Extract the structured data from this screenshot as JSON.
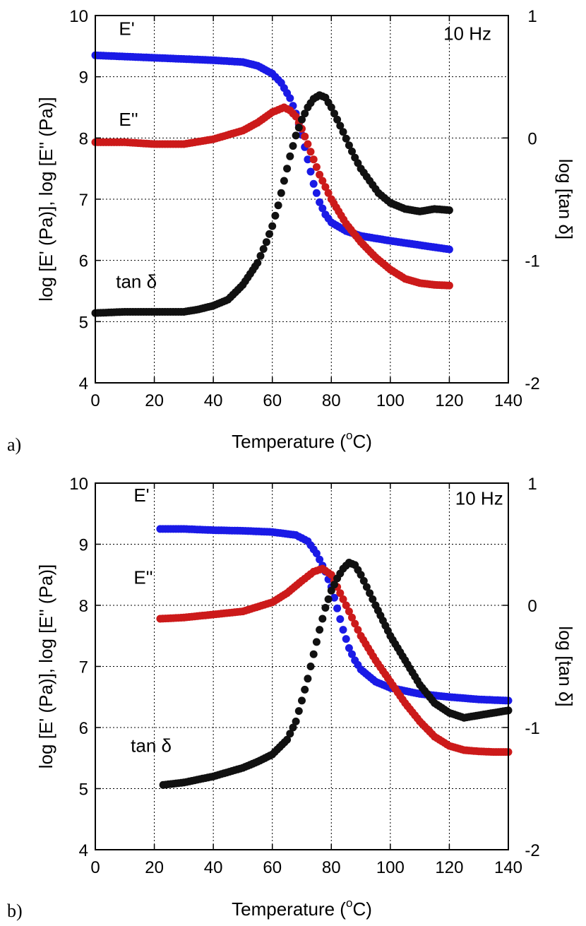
{
  "chart_data": [
    {
      "type": "scatter",
      "panel_label": "a)",
      "xlabel": "Temperature (",
      "xlabel_unit_sup": "o",
      "xlabel_suffix": "C)",
      "ylabel": "log [E' (Pa)], log [E'' (Pa)]",
      "y2label": "log [tan δ]",
      "xlim": [
        0,
        140
      ],
      "ylim": [
        4,
        10
      ],
      "y2lim": [
        -2,
        1
      ],
      "x_ticks": [
        "0",
        "20",
        "40",
        "60",
        "80",
        "100",
        "120",
        "140"
      ],
      "y_ticks": [
        "4",
        "5",
        "6",
        "7",
        "8",
        "9",
        "10"
      ],
      "y2_ticks": [
        "-2",
        "-1",
        "0",
        "1"
      ],
      "grid": true,
      "annotations": [
        {
          "text": "E'",
          "x": 8,
          "y": 9.68
        },
        {
          "text": "E''",
          "x": 8,
          "y": 8.2
        },
        {
          "text": "tan δ",
          "x": 7,
          "y": 5.55
        },
        {
          "text": "10 Hz",
          "x": 118,
          "y": 9.6
        }
      ],
      "series": [
        {
          "axis": "left",
          "color": "#1a1ae6",
          "points": [
            [
              0,
              9.35
            ],
            [
              10,
              9.33
            ],
            [
              20,
              9.31
            ],
            [
              30,
              9.29
            ],
            [
              40,
              9.27
            ],
            [
              50,
              9.24
            ],
            [
              55,
              9.18
            ],
            [
              60,
              9.05
            ],
            [
              63,
              8.9
            ],
            [
              66,
              8.65
            ],
            [
              68,
              8.4
            ],
            [
              70,
              8.05
            ],
            [
              72,
              7.65
            ],
            [
              74,
              7.25
            ],
            [
              76,
              6.95
            ],
            [
              78,
              6.75
            ],
            [
              80,
              6.62
            ],
            [
              85,
              6.48
            ],
            [
              90,
              6.4
            ],
            [
              100,
              6.32
            ],
            [
              110,
              6.25
            ],
            [
              120,
              6.18
            ]
          ]
        },
        {
          "axis": "left",
          "color": "#cc1a1a",
          "points": [
            [
              0,
              7.93
            ],
            [
              10,
              7.93
            ],
            [
              20,
              7.9
            ],
            [
              30,
              7.9
            ],
            [
              40,
              7.98
            ],
            [
              50,
              8.12
            ],
            [
              55,
              8.25
            ],
            [
              60,
              8.42
            ],
            [
              64,
              8.5
            ],
            [
              66,
              8.45
            ],
            [
              68,
              8.35
            ],
            [
              70,
              8.15
            ],
            [
              72,
              7.9
            ],
            [
              74,
              7.65
            ],
            [
              76,
              7.4
            ],
            [
              78,
              7.2
            ],
            [
              80,
              7.0
            ],
            [
              85,
              6.6
            ],
            [
              90,
              6.3
            ],
            [
              95,
              6.05
            ],
            [
              100,
              5.85
            ],
            [
              105,
              5.7
            ],
            [
              110,
              5.63
            ],
            [
              115,
              5.6
            ],
            [
              120,
              5.59
            ]
          ]
        },
        {
          "axis": "right",
          "color": "#111111",
          "points": [
            [
              0,
              -1.43
            ],
            [
              10,
              -1.42
            ],
            [
              20,
              -1.42
            ],
            [
              30,
              -1.42
            ],
            [
              35,
              -1.4
            ],
            [
              40,
              -1.37
            ],
            [
              45,
              -1.32
            ],
            [
              50,
              -1.2
            ],
            [
              55,
              -1.02
            ],
            [
              58,
              -0.85
            ],
            [
              60,
              -0.72
            ],
            [
              62,
              -0.55
            ],
            [
              64,
              -0.35
            ],
            [
              66,
              -0.15
            ],
            [
              68,
              0.02
            ],
            [
              70,
              0.15
            ],
            [
              72,
              0.25
            ],
            [
              74,
              0.32
            ],
            [
              76,
              0.35
            ],
            [
              78,
              0.33
            ],
            [
              80,
              0.25
            ],
            [
              82,
              0.15
            ],
            [
              84,
              0.05
            ],
            [
              86,
              -0.06
            ],
            [
              88,
              -0.16
            ],
            [
              90,
              -0.25
            ],
            [
              93,
              -0.35
            ],
            [
              96,
              -0.45
            ],
            [
              100,
              -0.53
            ],
            [
              105,
              -0.58
            ],
            [
              110,
              -0.6
            ],
            [
              115,
              -0.58
            ],
            [
              120,
              -0.59
            ]
          ]
        }
      ]
    },
    {
      "type": "scatter",
      "panel_label": "b)",
      "xlabel": "Temperature (",
      "xlabel_unit_sup": "o",
      "xlabel_suffix": "C)",
      "ylabel": "log [E' (Pa)], log [E'' (Pa)]",
      "y2label": "log [tan δ]",
      "xlim": [
        0,
        140
      ],
      "ylim": [
        4,
        10
      ],
      "y2lim": [
        -2,
        1
      ],
      "x_ticks": [
        "0",
        "20",
        "40",
        "60",
        "80",
        "100",
        "120",
        "140"
      ],
      "y_ticks": [
        "4",
        "5",
        "6",
        "7",
        "8",
        "9",
        "10"
      ],
      "y2_ticks": [
        "-2",
        "-1",
        "0",
        "1"
      ],
      "grid": true,
      "annotations": [
        {
          "text": "E'",
          "x": 13,
          "y": 9.7
        },
        {
          "text": "E''",
          "x": 13,
          "y": 8.35
        },
        {
          "text": "tan δ",
          "x": 12,
          "y": 5.6
        },
        {
          "text": "10 Hz",
          "x": 122,
          "y": 9.65
        }
      ],
      "series": [
        {
          "axis": "left",
          "color": "#1a1ae6",
          "points": [
            [
              22,
              9.25
            ],
            [
              30,
              9.25
            ],
            [
              40,
              9.23
            ],
            [
              50,
              9.22
            ],
            [
              60,
              9.2
            ],
            [
              68,
              9.15
            ],
            [
              72,
              9.05
            ],
            [
              75,
              8.85
            ],
            [
              78,
              8.55
            ],
            [
              80,
              8.3
            ],
            [
              82,
              7.95
            ],
            [
              84,
              7.6
            ],
            [
              86,
              7.3
            ],
            [
              88,
              7.1
            ],
            [
              90,
              6.95
            ],
            [
              95,
              6.75
            ],
            [
              100,
              6.65
            ],
            [
              110,
              6.55
            ],
            [
              120,
              6.5
            ],
            [
              130,
              6.46
            ],
            [
              140,
              6.44
            ]
          ]
        },
        {
          "axis": "left",
          "color": "#cc1a1a",
          "points": [
            [
              22,
              7.78
            ],
            [
              30,
              7.8
            ],
            [
              40,
              7.85
            ],
            [
              50,
              7.9
            ],
            [
              60,
              8.05
            ],
            [
              65,
              8.2
            ],
            [
              70,
              8.4
            ],
            [
              74,
              8.55
            ],
            [
              77,
              8.6
            ],
            [
              80,
              8.5
            ],
            [
              82,
              8.3
            ],
            [
              85,
              8.0
            ],
            [
              88,
              7.7
            ],
            [
              90,
              7.5
            ],
            [
              95,
              7.1
            ],
            [
              100,
              6.75
            ],
            [
              105,
              6.4
            ],
            [
              110,
              6.1
            ],
            [
              115,
              5.85
            ],
            [
              120,
              5.7
            ],
            [
              125,
              5.63
            ],
            [
              130,
              5.61
            ],
            [
              135,
              5.6
            ],
            [
              140,
              5.6
            ]
          ]
        },
        {
          "axis": "right",
          "color": "#111111",
          "points": [
            [
              23,
              -1.47
            ],
            [
              30,
              -1.45
            ],
            [
              40,
              -1.4
            ],
            [
              50,
              -1.33
            ],
            [
              55,
              -1.28
            ],
            [
              60,
              -1.22
            ],
            [
              65,
              -1.1
            ],
            [
              68,
              -0.95
            ],
            [
              70,
              -0.78
            ],
            [
              72,
              -0.6
            ],
            [
              74,
              -0.4
            ],
            [
              76,
              -0.2
            ],
            [
              78,
              -0.02
            ],
            [
              80,
              0.12
            ],
            [
              82,
              0.22
            ],
            [
              84,
              0.3
            ],
            [
              86,
              0.35
            ],
            [
              88,
              0.33
            ],
            [
              90,
              0.25
            ],
            [
              92,
              0.15
            ],
            [
              95,
              0.0
            ],
            [
              100,
              -0.25
            ],
            [
              105,
              -0.45
            ],
            [
              110,
              -0.65
            ],
            [
              115,
              -0.8
            ],
            [
              120,
              -0.88
            ],
            [
              125,
              -0.92
            ],
            [
              130,
              -0.9
            ],
            [
              135,
              -0.88
            ],
            [
              140,
              -0.86
            ]
          ]
        }
      ]
    }
  ]
}
